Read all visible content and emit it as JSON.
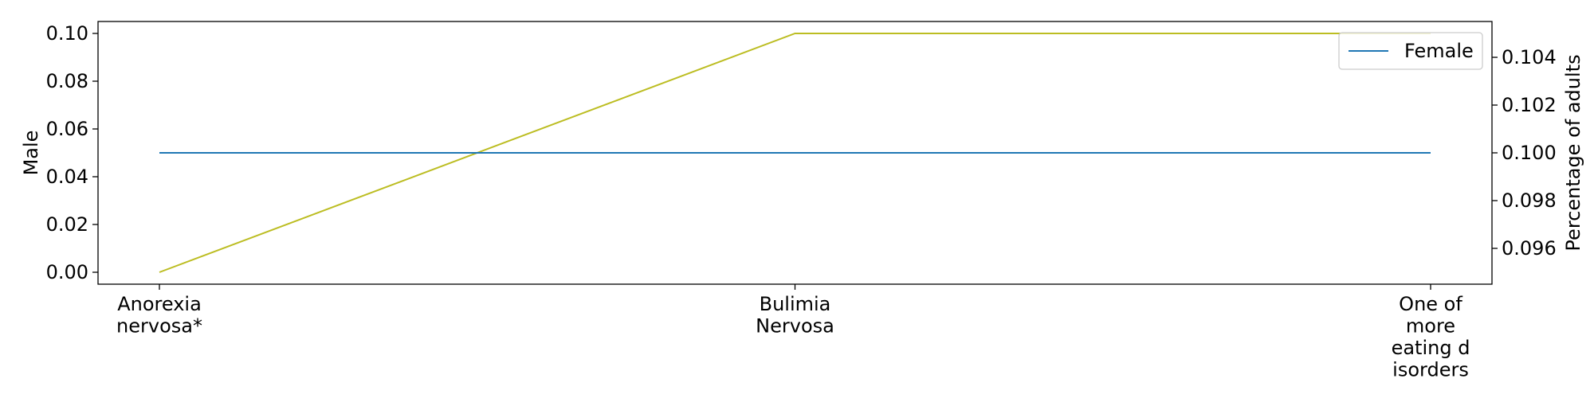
{
  "chart_data": {
    "type": "line",
    "categories": [
      "Anorexia nervosa*",
      "Bulimia Nervosa",
      "One of more eating disorders"
    ],
    "category_label_lines": [
      [
        "Anorexia",
        "nervosa*"
      ],
      [
        "Bulimia",
        "Nervosa"
      ],
      [
        "One of",
        "more",
        "eating d",
        "isorders"
      ]
    ],
    "series": [
      {
        "name": "Male",
        "axis": "left",
        "color": "#bcbd22",
        "values": [
          0.0,
          0.1,
          0.1
        ]
      },
      {
        "name": "Female",
        "axis": "right",
        "color": "#1f77b4",
        "values": [
          0.1,
          0.1,
          0.1
        ]
      }
    ],
    "left_axis": {
      "label": "Male",
      "ylim": [
        -0.005,
        0.105
      ],
      "ticks": [
        0.0,
        0.02,
        0.04,
        0.06,
        0.08,
        0.1
      ],
      "tick_labels": [
        "0.00",
        "0.02",
        "0.04",
        "0.06",
        "0.08",
        "0.10"
      ]
    },
    "right_axis": {
      "label": "Percentage of adults",
      "ylim": [
        0.0945,
        0.1055
      ],
      "ticks": [
        0.096,
        0.098,
        0.1,
        0.102,
        0.104
      ],
      "tick_labels": [
        "0.096",
        "0.098",
        "0.100",
        "0.102",
        "0.104"
      ]
    },
    "legend": {
      "entries": [
        "Female"
      ],
      "placement": "top-right"
    },
    "grid": false
  }
}
